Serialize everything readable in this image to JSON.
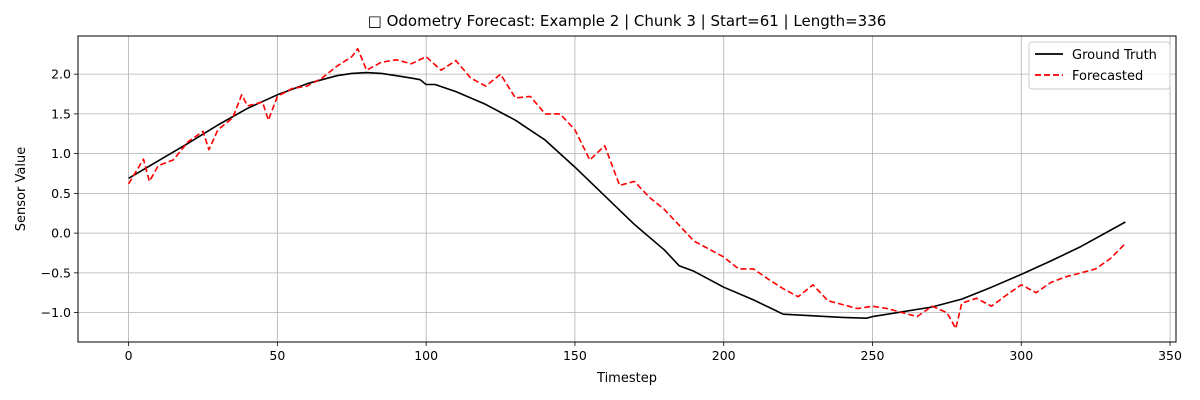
{
  "chart_data": {
    "type": "line",
    "title": "□ Odometry Forecast: Example 2 | Chunk 3 | Start=61 | Length=336",
    "xlabel": "Timestep",
    "ylabel": "Sensor Value",
    "xlim": [
      -17,
      352
    ],
    "ylim": [
      -1.37,
      2.48
    ],
    "xticks": [
      0,
      50,
      100,
      150,
      200,
      250,
      300,
      350
    ],
    "yticks": [
      -1.0,
      -0.5,
      0.0,
      0.5,
      1.0,
      1.5,
      2.0
    ],
    "xtick_labels": [
      "0",
      "50",
      "100",
      "150",
      "200",
      "250",
      "300",
      "350"
    ],
    "ytick_labels": [
      "−1.0",
      "−0.5",
      "0.0",
      "0.5",
      "1.0",
      "1.5",
      "2.0"
    ],
    "grid": true,
    "legend_position": "top-right",
    "series": [
      {
        "name": "Ground Truth",
        "color": "#000000",
        "style": "solid",
        "x": [
          0,
          10,
          20,
          30,
          40,
          50,
          60,
          70,
          75,
          80,
          85,
          90,
          95,
          98,
          100,
          103,
          110,
          120,
          130,
          140,
          150,
          160,
          170,
          180,
          185,
          190,
          200,
          210,
          215,
          220,
          230,
          240,
          248,
          250,
          260,
          270,
          280,
          290,
          300,
          310,
          320,
          335
        ],
        "values": [
          0.69,
          0.91,
          1.13,
          1.36,
          1.57,
          1.74,
          1.88,
          1.98,
          2.01,
          2.02,
          2.01,
          1.98,
          1.95,
          1.93,
          1.87,
          1.87,
          1.78,
          1.62,
          1.42,
          1.17,
          0.83,
          0.47,
          0.11,
          -0.21,
          -0.41,
          -0.48,
          -0.68,
          -0.84,
          -0.93,
          -1.02,
          -1.04,
          -1.06,
          -1.07,
          -1.05,
          -0.99,
          -0.93,
          -0.83,
          -0.68,
          -0.52,
          -0.35,
          -0.17,
          0.14
        ]
      },
      {
        "name": "Forecasted",
        "color": "#ff0000",
        "style": "dashed",
        "x": [
          0,
          5,
          7,
          10,
          15,
          20,
          25,
          27,
          30,
          35,
          38,
          40,
          45,
          47,
          50,
          55,
          60,
          65,
          70,
          75,
          77,
          80,
          85,
          90,
          95,
          100,
          105,
          110,
          115,
          120,
          125,
          130,
          135,
          140,
          145,
          150,
          155,
          160,
          165,
          170,
          175,
          180,
          185,
          190,
          195,
          200,
          205,
          210,
          215,
          220,
          225,
          230,
          235,
          240,
          245,
          250,
          255,
          260,
          265,
          270,
          275,
          278,
          280,
          285,
          290,
          295,
          300,
          305,
          310,
          315,
          320,
          325,
          330,
          335
        ],
        "values": [
          0.62,
          0.93,
          0.65,
          0.85,
          0.92,
          1.15,
          1.28,
          1.05,
          1.3,
          1.45,
          1.74,
          1.6,
          1.65,
          1.42,
          1.72,
          1.82,
          1.85,
          1.95,
          2.1,
          2.22,
          2.32,
          2.05,
          2.15,
          2.18,
          2.13,
          2.22,
          2.05,
          2.17,
          1.95,
          1.85,
          2.0,
          1.7,
          1.72,
          1.5,
          1.5,
          1.3,
          0.92,
          1.1,
          0.6,
          0.65,
          0.45,
          0.3,
          0.1,
          -0.1,
          -0.2,
          -0.3,
          -0.45,
          -0.45,
          -0.58,
          -0.7,
          -0.8,
          -0.65,
          -0.85,
          -0.9,
          -0.95,
          -0.92,
          -0.95,
          -1.0,
          -1.05,
          -0.92,
          -1.0,
          -1.2,
          -0.88,
          -0.82,
          -0.92,
          -0.78,
          -0.65,
          -0.75,
          -0.62,
          -0.55,
          -0.5,
          -0.45,
          -0.32,
          -0.13
        ]
      }
    ]
  }
}
